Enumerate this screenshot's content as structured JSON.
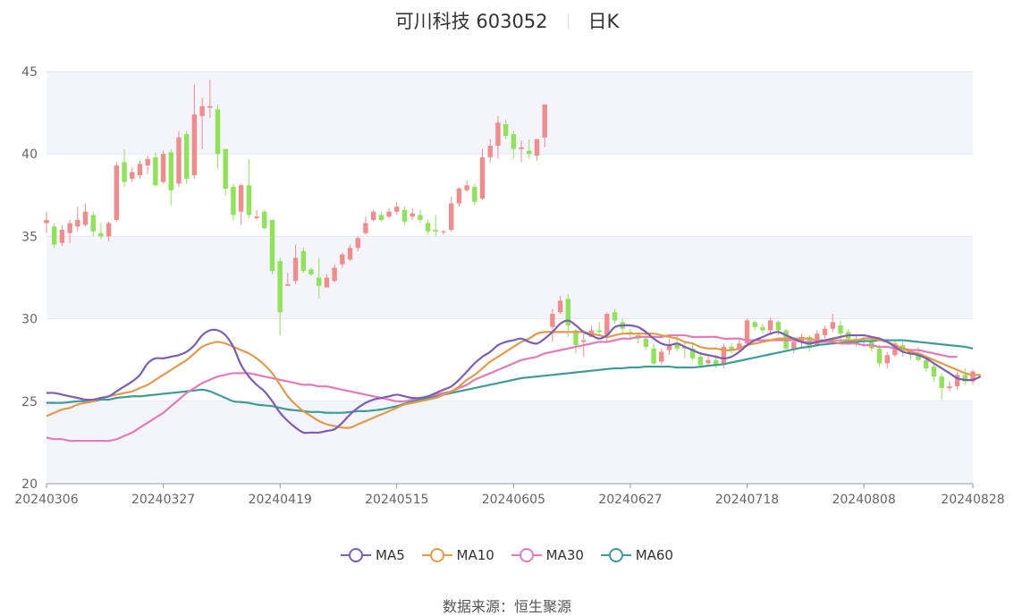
{
  "header": {
    "title": "可川科技 603052",
    "period": "日K"
  },
  "source": {
    "label": "数据来源：",
    "value": "恒生聚源"
  },
  "colors": {
    "up": "#f28b8b",
    "down": "#8ee357",
    "ma5": "#7b5eb6",
    "ma10": "#e49a4a",
    "ma30": "#e47ab6",
    "ma60": "#3e9c96",
    "band": "#f3f5fb",
    "grid": "#e4e7f2",
    "axis": "#999999"
  },
  "chart_data": {
    "type": "candlestick",
    "ylim": [
      20,
      45
    ],
    "yticks": [
      20,
      25,
      30,
      35,
      40,
      45
    ],
    "xtick_labels": [
      "20240306",
      "20240327",
      "20240419",
      "20240515",
      "20240605",
      "20240627",
      "20240718",
      "20240808",
      "20240828"
    ],
    "xtick_index": [
      0,
      15,
      30,
      45,
      60,
      75,
      90,
      105,
      119
    ],
    "legend": [
      "MA5",
      "MA10",
      "MA30",
      "MA60"
    ],
    "candles": [
      [
        35.8,
        36.0,
        36.5,
        35.2
      ],
      [
        35.6,
        34.5,
        35.8,
        34.3
      ],
      [
        34.6,
        35.4,
        35.7,
        34.4
      ],
      [
        35.2,
        35.8,
        36.0,
        34.6
      ],
      [
        35.6,
        36.0,
        36.8,
        35.3
      ],
      [
        35.7,
        36.5,
        37.0,
        35.6
      ],
      [
        36.3,
        35.3,
        36.5,
        35.0
      ],
      [
        35.2,
        35.0,
        35.8,
        34.8
      ],
      [
        35.0,
        35.8,
        35.9,
        34.7
      ],
      [
        36.0,
        39.3,
        39.5,
        35.9
      ],
      [
        39.5,
        38.3,
        40.3,
        38.0
      ],
      [
        38.5,
        38.9,
        39.2,
        38.3
      ],
      [
        38.7,
        39.4,
        39.6,
        38.5
      ],
      [
        39.3,
        39.7,
        39.9,
        38.8
      ],
      [
        39.8,
        38.1,
        40.1,
        38.0
      ],
      [
        38.3,
        40.0,
        40.2,
        38.2
      ],
      [
        40.1,
        37.8,
        40.3,
        36.9
      ],
      [
        38.2,
        41.0,
        41.4,
        38.0
      ],
      [
        41.2,
        38.5,
        41.4,
        38.2
      ],
      [
        38.7,
        42.4,
        44.2,
        38.5
      ],
      [
        42.3,
        42.9,
        43.4,
        40.3
      ],
      [
        42.8,
        42.9,
        44.5,
        42.2
      ],
      [
        42.7,
        40.0,
        43.0,
        39.1
      ],
      [
        40.3,
        37.9,
        40.3,
        37.5
      ],
      [
        38.0,
        36.3,
        38.2,
        36.0
      ],
      [
        36.5,
        38.1,
        38.2,
        35.7
      ],
      [
        38.1,
        36.3,
        39.7,
        36.1
      ],
      [
        36.1,
        36.2,
        36.6,
        36.0
      ],
      [
        36.5,
        35.5,
        36.6,
        35.4
      ],
      [
        36.0,
        32.9,
        36.0,
        32.7
      ],
      [
        33.5,
        30.4,
        33.7,
        29.0
      ],
      [
        32.0,
        32.1,
        32.8,
        32.0
      ],
      [
        32.3,
        33.7,
        34.5,
        32.1
      ],
      [
        34.1,
        32.9,
        34.3,
        32.8
      ],
      [
        33.0,
        32.7,
        33.1,
        32.6
      ],
      [
        32.5,
        32.0,
        33.7,
        31.2
      ],
      [
        31.9,
        32.5,
        32.7,
        31.9
      ],
      [
        32.3,
        33.1,
        33.3,
        32.2
      ],
      [
        33.3,
        33.9,
        34.0,
        33.1
      ],
      [
        33.6,
        34.3,
        34.5,
        33.5
      ],
      [
        34.3,
        34.9,
        35.0,
        34.1
      ],
      [
        35.2,
        35.8,
        36.2,
        35.1
      ],
      [
        36.0,
        36.5,
        36.6,
        35.9
      ],
      [
        36.3,
        36.0,
        36.5,
        35.9
      ],
      [
        36.2,
        36.5,
        36.7,
        36.1
      ],
      [
        36.5,
        36.8,
        37.1,
        36.3
      ],
      [
        36.6,
        35.9,
        36.8,
        35.7
      ],
      [
        36.2,
        36.4,
        36.7,
        36.0
      ],
      [
        36.3,
        36.0,
        36.6,
        35.8
      ],
      [
        35.8,
        35.3,
        36.0,
        35.1
      ],
      [
        35.4,
        35.3,
        36.3,
        35.0
      ],
      [
        35.3,
        35.3,
        35.4,
        35.1
      ],
      [
        35.4,
        37.0,
        37.4,
        35.3
      ],
      [
        37.0,
        37.9,
        38.0,
        36.8
      ],
      [
        37.8,
        38.1,
        38.4,
        37.7
      ],
      [
        38.0,
        37.1,
        38.2,
        36.9
      ],
      [
        37.3,
        39.8,
        40.3,
        37.2
      ],
      [
        39.8,
        40.5,
        40.9,
        39.5
      ],
      [
        40.5,
        41.9,
        42.3,
        39.7
      ],
      [
        41.8,
        41.1,
        42.1,
        40.9
      ],
      [
        41.2,
        40.3,
        41.4,
        39.7
      ],
      [
        40.3,
        40.4,
        40.8,
        39.5
      ],
      [
        40.2,
        40.0,
        40.9,
        39.7
      ],
      [
        39.9,
        40.9,
        40.9,
        39.6
      ],
      [
        41.0,
        43.0,
        43.0,
        40.4
      ],
      [
        29.5,
        30.3,
        30.6,
        28.6
      ],
      [
        30.4,
        31.1,
        31.4,
        30.3
      ],
      [
        31.2,
        29.6,
        31.5,
        28.9
      ],
      [
        29.3,
        28.4,
        29.4,
        27.9
      ],
      [
        28.6,
        28.7,
        29.2,
        27.7
      ],
      [
        28.9,
        29.3,
        29.6,
        28.9
      ],
      [
        29.3,
        29.2,
        29.8,
        29.0
      ],
      [
        29.0,
        30.3,
        30.4,
        28.6
      ],
      [
        30.4,
        29.9,
        30.6,
        29.7
      ],
      [
        29.8,
        29.4,
        30.0,
        29.1
      ],
      [
        29.2,
        29.1,
        29.4,
        28.8
      ],
      [
        29.0,
        28.8,
        29.2,
        28.5
      ],
      [
        28.8,
        28.3,
        29.1,
        28.1
      ],
      [
        28.2,
        27.3,
        28.5,
        27.2
      ],
      [
        27.4,
        28.0,
        28.2,
        27.2
      ],
      [
        28.1,
        28.4,
        28.8,
        27.8
      ],
      [
        28.5,
        28.2,
        29.1,
        28.0
      ],
      [
        28.3,
        28.2,
        28.6,
        27.6
      ],
      [
        28.2,
        27.6,
        28.6,
        27.5
      ],
      [
        27.7,
        27.2,
        28.0,
        27.0
      ],
      [
        27.3,
        27.5,
        27.8,
        27.1
      ],
      [
        27.5,
        27.2,
        27.8,
        27.0
      ],
      [
        27.2,
        28.3,
        28.5,
        27.0
      ],
      [
        28.3,
        28.1,
        28.5,
        27.9
      ],
      [
        28.2,
        28.5,
        28.8,
        28.0
      ],
      [
        28.5,
        29.9,
        30.0,
        28.3
      ],
      [
        29.8,
        29.5,
        29.9,
        29.3
      ],
      [
        29.5,
        29.3,
        29.7,
        29.1
      ],
      [
        29.3,
        29.9,
        30.1,
        29.1
      ],
      [
        29.8,
        29.3,
        29.9,
        29.0
      ],
      [
        29.3,
        28.2,
        29.4,
        28.0
      ],
      [
        28.2,
        28.6,
        28.8,
        27.9
      ],
      [
        28.6,
        28.9,
        29.1,
        28.3
      ],
      [
        28.9,
        28.3,
        29.0,
        28.0
      ],
      [
        28.4,
        29.1,
        29.3,
        28.3
      ],
      [
        29.0,
        29.4,
        29.6,
        28.8
      ],
      [
        29.4,
        29.8,
        30.3,
        29.2
      ],
      [
        29.6,
        29.1,
        29.9,
        28.6
      ],
      [
        29.2,
        28.8,
        29.4,
        28.4
      ],
      [
        28.8,
        28.5,
        29.0,
        28.3
      ],
      [
        28.6,
        28.7,
        28.9,
        28.3
      ],
      [
        28.6,
        28.2,
        28.8,
        28.0
      ],
      [
        28.2,
        27.3,
        28.4,
        27.1
      ],
      [
        27.3,
        27.8,
        28.0,
        27.0
      ],
      [
        27.8,
        28.5,
        28.7,
        27.7
      ],
      [
        28.4,
        28.0,
        28.6,
        27.7
      ],
      [
        28.0,
        27.8,
        28.2,
        27.5
      ],
      [
        27.8,
        27.5,
        28.3,
        27.4
      ],
      [
        27.5,
        27.0,
        27.8,
        26.8
      ],
      [
        27.1,
        26.5,
        27.3,
        26.2
      ],
      [
        26.5,
        25.8,
        26.7,
        25.1
      ],
      [
        25.8,
        25.9,
        26.2,
        25.6
      ],
      [
        25.9,
        26.6,
        26.8,
        25.7
      ],
      [
        26.6,
        26.2,
        27.0,
        26.0
      ],
      [
        26.2,
        26.8,
        26.9,
        26.0
      ]
    ],
    "ma5": [
      25.5,
      25.5,
      25.4,
      25.3,
      25.2,
      25.1,
      25.1,
      25.2,
      25.3,
      25.6,
      25.9,
      26.2,
      26.6,
      27.3,
      27.6,
      27.6,
      27.7,
      27.8,
      28.0,
      28.4,
      29.0,
      29.3,
      29.3,
      29.0,
      28.3,
      27.2,
      26.5,
      26.0,
      25.6,
      25.0,
      24.3,
      23.8,
      23.4,
      23.1,
      23.1,
      23.1,
      23.2,
      23.3,
      23.7,
      24.2,
      24.6,
      24.9,
      25.1,
      25.2,
      25.3,
      25.4,
      25.3,
      25.2,
      25.2,
      25.3,
      25.5,
      25.7,
      25.9,
      26.3,
      26.8,
      27.3,
      27.7,
      28.0,
      28.4,
      28.6,
      28.7,
      28.8,
      28.6,
      28.5,
      28.8,
      29.2,
      29.7,
      29.9,
      29.6,
      29.2,
      29.0,
      28.8,
      29.0,
      29.5,
      29.6,
      29.6,
      29.5,
      29.2,
      28.8,
      28.5,
      28.4,
      28.5,
      28.3,
      28.1,
      27.9,
      27.8,
      27.7,
      27.6,
      27.7,
      28.0,
      28.4,
      28.7,
      28.9,
      29.1,
      29.2,
      29.0,
      28.8,
      28.6,
      28.5,
      28.6,
      28.7,
      28.8,
      28.9,
      29.0,
      29.0,
      29.0,
      28.9,
      28.8,
      28.6,
      28.3,
      28.0,
      27.9,
      27.8,
      27.6,
      27.3,
      27.0,
      26.7,
      26.4,
      26.3,
      26.3,
      26.5
    ],
    "ma10": [
      24.1,
      24.3,
      24.5,
      24.6,
      24.8,
      24.9,
      25.0,
      25.2,
      25.3,
      25.4,
      25.5,
      25.6,
      25.8,
      26.0,
      26.3,
      26.6,
      26.9,
      27.2,
      27.5,
      27.9,
      28.3,
      28.5,
      28.6,
      28.5,
      28.3,
      28.1,
      27.9,
      27.6,
      27.2,
      26.7,
      26.0,
      25.3,
      24.8,
      24.4,
      24.1,
      23.8,
      23.6,
      23.5,
      23.4,
      23.4,
      23.6,
      23.8,
      24.0,
      24.2,
      24.4,
      24.6,
      24.8,
      24.9,
      25.0,
      25.1,
      25.2,
      25.4,
      25.6,
      25.9,
      26.3,
      26.6,
      27.0,
      27.4,
      27.7,
      28.0,
      28.3,
      28.6,
      28.8,
      29.1,
      29.2,
      29.2,
      29.2,
      29.2,
      29.2,
      29.2,
      29.1,
      29.0,
      28.9,
      29.0,
      29.1,
      29.1,
      29.1,
      29.1,
      29.1,
      29.0,
      28.9,
      28.8,
      28.6,
      28.5,
      28.3,
      28.2,
      28.2,
      28.1,
      28.1,
      28.2,
      28.4,
      28.5,
      28.6,
      28.7,
      28.8,
      28.8,
      28.8,
      28.8,
      28.8,
      28.7,
      28.7,
      28.7,
      28.7,
      28.7,
      28.7,
      28.8,
      28.8,
      28.7,
      28.6,
      28.4,
      28.2,
      28.0,
      27.9,
      27.7,
      27.5,
      27.3,
      27.1,
      26.9,
      26.7,
      26.6,
      26.6
    ],
    "ma30": [
      22.8,
      22.7,
      22.7,
      22.6,
      22.6,
      22.6,
      22.6,
      22.6,
      22.6,
      22.7,
      22.9,
      23.1,
      23.4,
      23.7,
      24.0,
      24.3,
      24.7,
      25.1,
      25.5,
      25.8,
      26.1,
      26.3,
      26.5,
      26.6,
      26.7,
      26.7,
      26.7,
      26.6,
      26.5,
      26.4,
      26.3,
      26.2,
      26.1,
      26.0,
      26.0,
      25.9,
      25.9,
      25.8,
      25.7,
      25.6,
      25.5,
      25.4,
      25.3,
      25.2,
      25.1,
      25.0,
      25.0,
      25.1,
      25.2,
      25.3,
      25.4,
      25.5,
      25.6,
      25.8,
      26.0,
      26.3,
      26.5,
      26.7,
      26.9,
      27.1,
      27.3,
      27.5,
      27.6,
      27.7,
      27.9,
      28.0,
      28.1,
      28.2,
      28.3,
      28.4,
      28.5,
      28.6,
      28.6,
      28.7,
      28.8,
      28.8,
      28.9,
      28.9,
      28.9,
      28.9,
      29.0,
      29.0,
      29.0,
      28.9,
      28.9,
      28.9,
      28.9,
      28.8,
      28.8,
      28.8,
      28.7,
      28.7,
      28.7,
      28.7,
      28.7,
      28.7,
      28.7,
      28.6,
      28.6,
      28.6,
      28.6,
      28.6,
      28.5,
      28.5,
      28.5,
      28.4,
      28.4,
      28.3,
      28.3,
      28.2,
      28.2,
      28.1,
      28.1,
      28.0,
      27.9,
      27.8,
      27.7,
      27.7
    ],
    "ma60": [
      24.9,
      24.9,
      24.9,
      24.95,
      25.0,
      25.0,
      25.0,
      25.1,
      25.1,
      25.2,
      25.25,
      25.3,
      25.3,
      25.35,
      25.4,
      25.45,
      25.5,
      25.55,
      25.6,
      25.65,
      25.7,
      25.6,
      25.4,
      25.2,
      25.0,
      24.95,
      24.9,
      24.8,
      24.75,
      24.7,
      24.6,
      24.5,
      24.45,
      24.4,
      24.35,
      24.35,
      24.3,
      24.3,
      24.3,
      24.35,
      24.4,
      24.4,
      24.45,
      24.5,
      24.6,
      24.7,
      24.85,
      25.0,
      25.1,
      25.2,
      25.3,
      25.4,
      25.5,
      25.6,
      25.7,
      25.8,
      25.9,
      26.0,
      26.1,
      26.2,
      26.3,
      26.4,
      26.45,
      26.5,
      26.55,
      26.6,
      26.65,
      26.7,
      26.75,
      26.8,
      26.85,
      26.9,
      26.95,
      27.0,
      27.0,
      27.05,
      27.05,
      27.1,
      27.1,
      27.1,
      27.1,
      27.05,
      27.05,
      27.05,
      27.1,
      27.15,
      27.2,
      27.25,
      27.35,
      27.45,
      27.55,
      27.65,
      27.75,
      27.85,
      27.95,
      28.05,
      28.15,
      28.25,
      28.3,
      28.4,
      28.45,
      28.5,
      28.55,
      28.6,
      28.6,
      28.65,
      28.65,
      28.7,
      28.7,
      28.7,
      28.7,
      28.65,
      28.6,
      28.55,
      28.5,
      28.45,
      28.4,
      28.35,
      28.3,
      28.2
    ]
  }
}
